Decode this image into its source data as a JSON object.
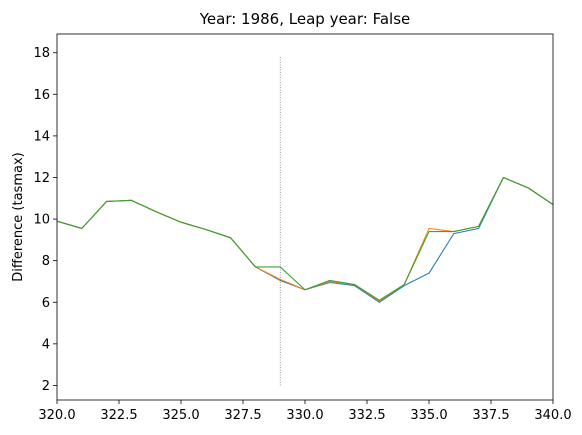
{
  "chart_data": {
    "type": "line",
    "title": "Year: 1986, Leap year: False",
    "xlabel": "",
    "ylabel": "Difference (tasmax)",
    "xlim": [
      320,
      340
    ],
    "ylim": [
      1.3,
      18.9
    ],
    "xticks": [
      320.0,
      322.5,
      325.0,
      327.5,
      330.0,
      332.5,
      335.0,
      337.5,
      340.0
    ],
    "xtick_labels": [
      "320.0",
      "322.5",
      "325.0",
      "327.5",
      "330.0",
      "332.5",
      "335.0",
      "337.5",
      "340.0"
    ],
    "yticks": [
      2,
      4,
      6,
      8,
      10,
      12,
      14,
      16,
      18
    ],
    "ytick_labels": [
      "2",
      "4",
      "6",
      "8",
      "10",
      "12",
      "14",
      "16",
      "18"
    ],
    "grid": false,
    "legend": false,
    "vline": {
      "x": 329,
      "ymin": 2.0,
      "ymax": 17.8,
      "color": "#555555",
      "style": "dotted"
    },
    "series": [
      {
        "color": "#1f77b4",
        "x": [
          320,
          321,
          322,
          323,
          324,
          325,
          326,
          327,
          328,
          329,
          330,
          331,
          332,
          333,
          334,
          335,
          336,
          337,
          338,
          339,
          340
        ],
        "values": [
          9.9,
          9.55,
          10.85,
          10.9,
          10.35,
          9.85,
          9.5,
          9.1,
          7.7,
          7.05,
          6.6,
          6.95,
          6.8,
          6.0,
          6.8,
          7.4,
          9.3,
          9.55,
          12.0,
          11.5,
          10.7
        ]
      },
      {
        "color": "#ff7f0e",
        "x": [
          320,
          321,
          322,
          323,
          324,
          325,
          326,
          327,
          328,
          329,
          330,
          331,
          332,
          333,
          334,
          335,
          336,
          337,
          338,
          339,
          340
        ],
        "values": [
          9.9,
          9.55,
          10.85,
          10.9,
          10.35,
          9.85,
          9.5,
          9.1,
          7.7,
          7.1,
          6.6,
          7.0,
          6.85,
          6.05,
          6.85,
          9.55,
          9.4,
          9.65,
          12.0,
          11.5,
          10.7
        ]
      },
      {
        "color": "#2ca02c",
        "x": [
          320,
          321,
          322,
          323,
          324,
          325,
          326,
          327,
          328,
          329,
          330,
          331,
          332,
          333,
          334,
          335,
          336,
          337,
          338,
          339,
          340
        ],
        "values": [
          9.9,
          9.55,
          10.85,
          10.9,
          10.35,
          9.85,
          9.5,
          9.1,
          7.7,
          7.7,
          6.6,
          7.05,
          6.85,
          6.1,
          6.85,
          9.4,
          9.4,
          9.65,
          12.0,
          11.5,
          10.7
        ]
      }
    ]
  }
}
